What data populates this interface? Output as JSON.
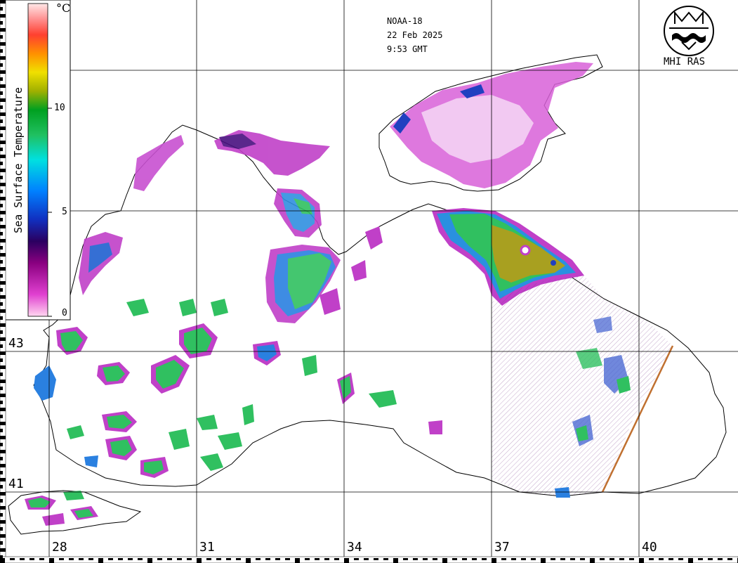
{
  "header": {
    "satellite": "NOAA-18",
    "date": "22 Feb 2025",
    "time": "9:53 GMT"
  },
  "logo": {
    "text": "MHI RAS",
    "icon": "mhi-ras-emblem-icon"
  },
  "colorbar": {
    "title": "Sea Surface Temperature",
    "unit": "°C",
    "ticks": [
      "10",
      "5",
      "0"
    ],
    "tick_values": [
      10,
      5,
      0
    ],
    "range": [
      0,
      15
    ],
    "colors": [
      "#ffd6f0",
      "#e040d0",
      "#8a0080",
      "#2a0060",
      "#1030c0",
      "#0080ff",
      "#00e0e0",
      "#20c060",
      "#00a020",
      "#a0b000",
      "#f0e000",
      "#ff9000",
      "#ff4030",
      "#ff9090",
      "#ffe8e8"
    ]
  },
  "grid": {
    "longitudes": [
      "28",
      "31",
      "34",
      "37",
      "40"
    ],
    "latitudes": [
      "43",
      "41"
    ]
  },
  "colors": {
    "land": "#ffffff",
    "coast": "#000000",
    "cold_magenta": "#d040d0",
    "cool_blue": "#2050d0",
    "mild_green": "#30c050",
    "warm_olive": "#a8a020"
  }
}
